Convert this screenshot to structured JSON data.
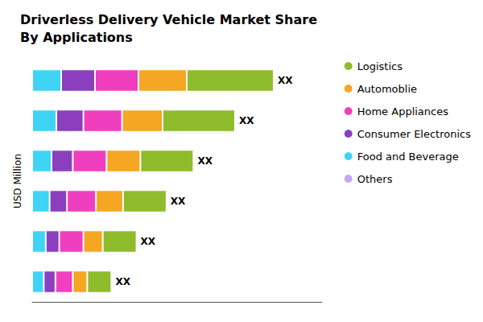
{
  "chart_data": {
    "type": "bar",
    "orientation": "horizontal",
    "stacked": true,
    "title": "Driverless Delivery Vehicle Market Share\nBy Applications",
    "ylabel": "USD Million",
    "categories": [
      null,
      null,
      null,
      null,
      null,
      null
    ],
    "series": [
      {
        "name": "Logistics",
        "color": "#8fbc2b",
        "values": [
          9.0,
          7.5,
          5.5,
          4.5,
          3.5,
          2.5
        ]
      },
      {
        "name": "Automoblie",
        "color": "#f5a623",
        "values": [
          5.0,
          4.2,
          3.5,
          2.8,
          2.0,
          1.5
        ]
      },
      {
        "name": "Home Appliances",
        "color": "#f03fbe",
        "values": [
          4.5,
          4.0,
          3.5,
          3.0,
          2.5,
          1.8
        ]
      },
      {
        "name": "Consumer Electronics",
        "color": "#8b3fbf",
        "values": [
          3.5,
          2.8,
          2.2,
          1.8,
          1.4,
          1.2
        ]
      },
      {
        "name": "Food and Beverage",
        "color": "#3fd4f5",
        "values": [
          3,
          2.5,
          2.0,
          1.8,
          1.4,
          1.2
        ]
      },
      {
        "name": "Others",
        "color": "#c0a8f0",
        "values": [
          null,
          null,
          null,
          null,
          null,
          null
        ]
      }
    ],
    "annotations": [
      "XX",
      "XX",
      "XX",
      "XX",
      "XX",
      "XX"
    ],
    "xlim": [
      0,
      30
    ],
    "grid": false,
    "tick_labels": false,
    "legend": "upper right"
  }
}
